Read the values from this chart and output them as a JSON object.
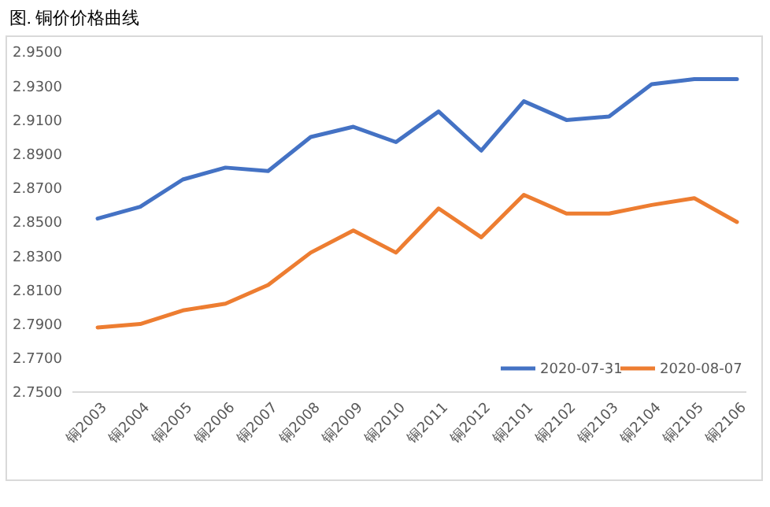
{
  "chart_data": {
    "type": "line",
    "title": "图. 铜价价格曲线",
    "categories": [
      "铜2003",
      "铜2004",
      "铜2005",
      "铜2006",
      "铜2007",
      "铜2008",
      "铜2009",
      "铜2010",
      "铜2011",
      "铜2012",
      "铜2101",
      "铜2102",
      "铜2103",
      "铜2104",
      "铜2105",
      "铜2106"
    ],
    "series": [
      {
        "name": "2020-07-31",
        "color": "#4472c4",
        "values": [
          2.852,
          2.859,
          2.875,
          2.882,
          2.88,
          2.9,
          2.906,
          2.897,
          2.915,
          2.892,
          2.921,
          2.91,
          2.912,
          2.931,
          2.934,
          2.934
        ]
      },
      {
        "name": "2020-08-07",
        "color": "#ed7d31",
        "values": [
          2.788,
          2.79,
          2.798,
          2.802,
          2.813,
          2.832,
          2.845,
          2.832,
          2.858,
          2.841,
          2.866,
          2.855,
          2.855,
          2.86,
          2.864,
          2.85
        ]
      }
    ],
    "ylim": [
      2.75,
      2.95
    ],
    "yticks": [
      {
        "value": 2.75,
        "label": "2.7500"
      },
      {
        "value": 2.77,
        "label": "2.7700"
      },
      {
        "value": 2.79,
        "label": "2.7900"
      },
      {
        "value": 2.81,
        "label": "2.8100"
      },
      {
        "value": 2.83,
        "label": "2.8300"
      },
      {
        "value": 2.85,
        "label": "2.8500"
      },
      {
        "value": 2.87,
        "label": "2.8700"
      },
      {
        "value": 2.89,
        "label": "2.8900"
      },
      {
        "value": 2.91,
        "label": "2.9100"
      },
      {
        "value": 2.93,
        "label": "2.9300"
      },
      {
        "value": 2.95,
        "label": "2.9500"
      }
    ],
    "legend": "bottom right"
  }
}
